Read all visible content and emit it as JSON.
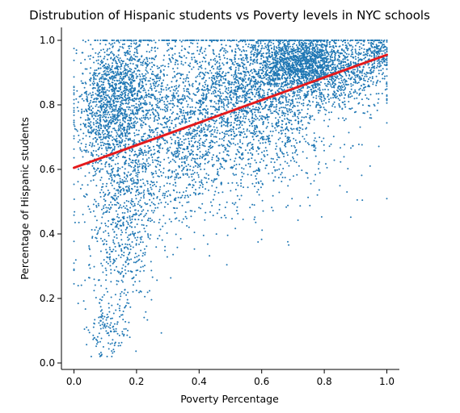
{
  "chart_data": {
    "type": "scatter",
    "title": "Distrubution of Hispanic students vs Poverty levels in NYC schools",
    "xlabel": "Poverty Percentage",
    "ylabel": "Percentage of Hispanic students",
    "xlim": [
      -0.04,
      1.04
    ],
    "ylim": [
      -0.02,
      1.04
    ],
    "x_ticks": [
      0.0,
      0.2,
      0.4,
      0.6,
      0.8,
      1.0
    ],
    "x_tick_labels": [
      "0.0",
      "0.2",
      "0.4",
      "0.6",
      "0.8",
      "1.0"
    ],
    "y_ticks": [
      0.0,
      0.2,
      0.4,
      0.6,
      0.8,
      1.0
    ],
    "y_tick_labels": [
      "0.0",
      "0.2",
      "0.4",
      "0.6",
      "0.8",
      "1.0"
    ],
    "grid": false,
    "spines": [
      "left",
      "bottom"
    ],
    "colors": {
      "points": "#1f77b4",
      "regression": "#e41a1c"
    },
    "regression_line": {
      "x": [
        0.0,
        1.0
      ],
      "y": [
        0.605,
        0.955
      ]
    },
    "point_clusters": [
      {
        "x_mean": 0.1,
        "x_sd": 0.05,
        "y_mean": 0.78,
        "y_sd": 0.1,
        "count": 700
      },
      {
        "x_mean": 0.17,
        "x_sd": 0.06,
        "y_mean": 0.86,
        "y_sd": 0.08,
        "count": 800
      },
      {
        "x_mean": 0.15,
        "x_sd": 0.06,
        "y_mean": 0.45,
        "y_sd": 0.16,
        "count": 750
      },
      {
        "x_mean": 0.11,
        "x_sd": 0.03,
        "y_mean": 0.1,
        "y_sd": 0.04,
        "count": 120
      },
      {
        "x_mean": 0.3,
        "x_sd": 0.09,
        "y_mean": 0.72,
        "y_sd": 0.15,
        "count": 1000
      },
      {
        "x_mean": 0.45,
        "x_sd": 0.1,
        "y_mean": 0.78,
        "y_sd": 0.14,
        "count": 900
      },
      {
        "x_mean": 0.6,
        "x_sd": 0.08,
        "y_mean": 0.86,
        "y_sd": 0.09,
        "count": 1000
      },
      {
        "x_mean": 0.72,
        "x_sd": 0.07,
        "y_mean": 0.93,
        "y_sd": 0.04,
        "count": 1200
      },
      {
        "x_mean": 0.85,
        "x_sd": 0.08,
        "y_mean": 0.91,
        "y_sd": 0.06,
        "count": 800
      },
      {
        "x_mean": 0.65,
        "x_sd": 0.12,
        "y_mean": 0.72,
        "y_sd": 0.12,
        "count": 500
      },
      {
        "x_mean": 0.97,
        "x_sd": 0.02,
        "y_mean": 0.96,
        "y_sd": 0.03,
        "count": 150
      }
    ]
  }
}
